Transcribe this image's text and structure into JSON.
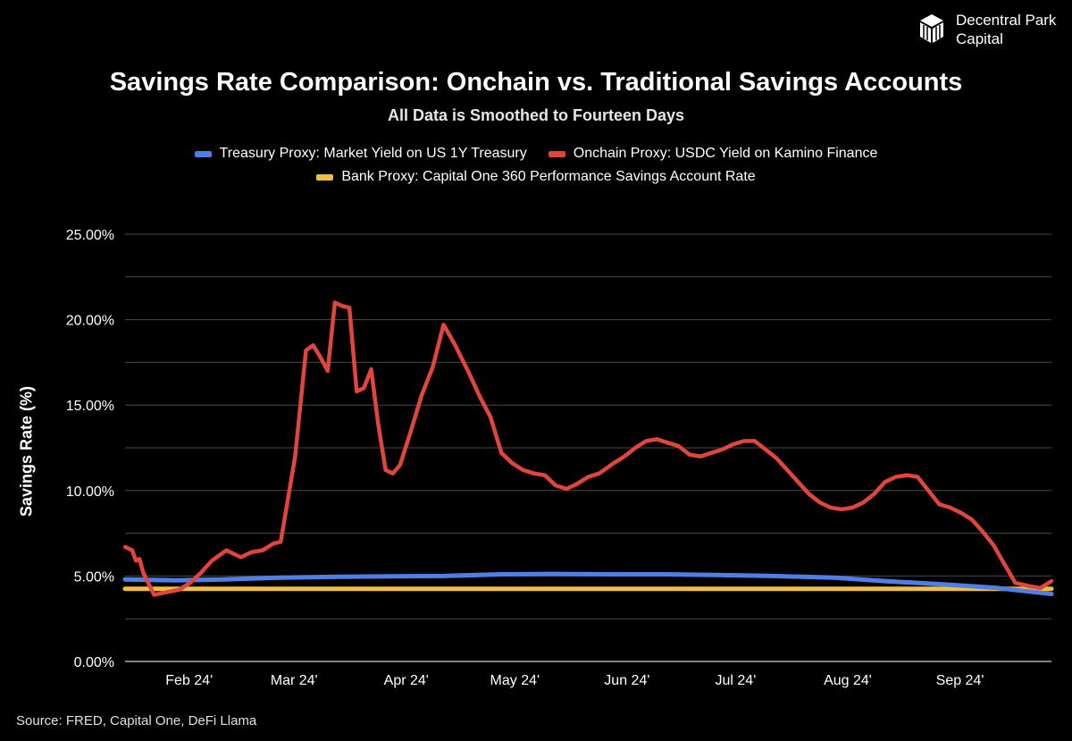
{
  "brand": {
    "name_line1": "Decentral Park",
    "name_line2": "Capital",
    "logo_icon": "cube-logo-icon"
  },
  "source": "Source: FRED, Capital One, DeFi Llama",
  "colors": {
    "treasury": "#4f7fe6",
    "onchain": "#e0463a",
    "bank": "#f2be3c",
    "grid": "#4a4a4a",
    "text": "#ffffff"
  },
  "chart_data": {
    "type": "line",
    "title": "Savings Rate Comparison: Onchain vs. Traditional Savings Accounts",
    "subtitle": "All Data is Smoothed to Fourteen Days",
    "xlabel": "",
    "ylabel": "Savings Rate (%)",
    "ylim": [
      0,
      25
    ],
    "yticks": [
      0,
      5,
      10,
      15,
      20,
      25
    ],
    "ytick_labels": [
      "0.00%",
      "5.00%",
      "10.00%",
      "15.00%",
      "20.00%",
      "25.00%"
    ],
    "x_range": [
      "2024-01-18",
      "2024-09-30"
    ],
    "xticks": [
      {
        "label": "Feb 24'",
        "date": "2024-02-01"
      },
      {
        "label": "Mar 24'",
        "date": "2024-03-01"
      },
      {
        "label": "Apr 24'",
        "date": "2024-04-01"
      },
      {
        "label": "May 24'",
        "date": "2024-05-01"
      },
      {
        "label": "Jun 24'",
        "date": "2024-06-01"
      },
      {
        "label": "Jul 24'",
        "date": "2024-07-01"
      },
      {
        "label": "Aug 24'",
        "date": "2024-08-01"
      },
      {
        "label": "Sep 24'",
        "date": "2024-09-01"
      }
    ],
    "grid": true,
    "legend_position": "top",
    "series": [
      {
        "name": "Treasury Proxy: Market Yield on US 1Y Treasury",
        "key": "treasury",
        "x": [
          "2024-01-18",
          "2024-02-01",
          "2024-02-15",
          "2024-03-01",
          "2024-03-15",
          "2024-04-01",
          "2024-04-15",
          "2024-05-01",
          "2024-05-15",
          "2024-06-01",
          "2024-06-15",
          "2024-07-01",
          "2024-07-15",
          "2024-08-01",
          "2024-08-15",
          "2024-09-01",
          "2024-09-15",
          "2024-09-30"
        ],
        "values": [
          4.8,
          4.75,
          4.8,
          4.9,
          4.95,
          4.98,
          5.0,
          5.1,
          5.12,
          5.1,
          5.1,
          5.05,
          5.0,
          4.9,
          4.7,
          4.5,
          4.3,
          3.95
        ]
      },
      {
        "name": "Onchain Proxy: USDC Yield on Kamino Finance",
        "key": "onchain",
        "x": [
          "2024-01-18",
          "2024-01-20",
          "2024-01-21",
          "2024-01-22",
          "2024-01-23",
          "2024-01-26",
          "2024-02-02",
          "2024-02-05",
          "2024-02-08",
          "2024-02-11",
          "2024-02-13",
          "2024-02-15",
          "2024-02-19",
          "2024-02-22",
          "2024-02-25",
          "2024-02-28",
          "2024-03-01",
          "2024-03-05",
          "2024-03-08",
          "2024-03-10",
          "2024-03-12",
          "2024-03-14",
          "2024-03-16",
          "2024-03-18",
          "2024-03-20",
          "2024-03-22",
          "2024-03-24",
          "2024-03-26",
          "2024-03-28",
          "2024-03-30",
          "2024-04-01",
          "2024-04-03",
          "2024-04-06",
          "2024-04-09",
          "2024-04-12",
          "2024-04-15",
          "2024-04-18",
          "2024-04-22",
          "2024-04-25",
          "2024-04-28",
          "2024-05-01",
          "2024-05-04",
          "2024-05-07",
          "2024-05-10",
          "2024-05-13",
          "2024-05-16",
          "2024-05-19",
          "2024-05-22",
          "2024-05-25",
          "2024-05-28",
          "2024-06-01",
          "2024-06-04",
          "2024-06-07",
          "2024-06-10",
          "2024-06-13",
          "2024-06-16",
          "2024-06-19",
          "2024-06-22",
          "2024-06-25",
          "2024-06-28",
          "2024-07-01",
          "2024-07-04",
          "2024-07-07",
          "2024-07-10",
          "2024-07-13",
          "2024-07-16",
          "2024-07-19",
          "2024-07-22",
          "2024-07-25",
          "2024-07-28",
          "2024-07-31",
          "2024-08-03",
          "2024-08-06",
          "2024-08-09",
          "2024-08-12",
          "2024-08-15",
          "2024-08-18",
          "2024-08-21",
          "2024-08-24",
          "2024-08-27",
          "2024-08-30",
          "2024-09-02",
          "2024-09-05",
          "2024-09-08",
          "2024-09-11",
          "2024-09-14",
          "2024-09-17",
          "2024-09-20",
          "2024-09-24",
          "2024-09-27",
          "2024-09-30"
        ],
        "values": [
          6.7,
          6.5,
          5.9,
          6.0,
          5.2,
          3.9,
          4.2,
          4.6,
          5.2,
          5.9,
          6.2,
          6.5,
          6.1,
          6.4,
          6.5,
          6.9,
          7.0,
          12.0,
          18.2,
          18.5,
          17.8,
          17.0,
          21.0,
          20.8,
          20.7,
          15.8,
          16.0,
          17.1,
          13.8,
          11.2,
          11.0,
          11.5,
          13.5,
          15.6,
          17.2,
          19.7,
          18.6,
          16.9,
          15.5,
          14.3,
          12.2,
          11.6,
          11.2,
          11.0,
          10.9,
          10.3,
          10.1,
          10.4,
          10.8,
          11.0,
          11.6,
          12.0,
          12.5,
          12.9,
          13.0,
          12.8,
          12.6,
          12.1,
          12.0,
          12.2,
          12.4,
          12.7,
          12.9,
          12.9,
          12.4,
          11.9,
          11.2,
          10.5,
          9.8,
          9.3,
          9.0,
          8.9,
          9.0,
          9.3,
          9.8,
          10.5,
          10.8,
          10.9,
          10.8,
          10.0,
          9.2,
          9.0,
          8.7,
          8.3,
          7.6,
          6.8,
          5.7,
          4.6,
          4.4,
          4.3,
          4.7
        ]
      },
      {
        "name": "Bank Proxy: Capital One 360 Performance Savings Account Rate",
        "key": "bank",
        "x": [
          "2024-01-18",
          "2024-03-01",
          "2024-06-01",
          "2024-09-01",
          "2024-09-30"
        ],
        "values": [
          4.25,
          4.25,
          4.25,
          4.25,
          4.25
        ]
      }
    ]
  }
}
